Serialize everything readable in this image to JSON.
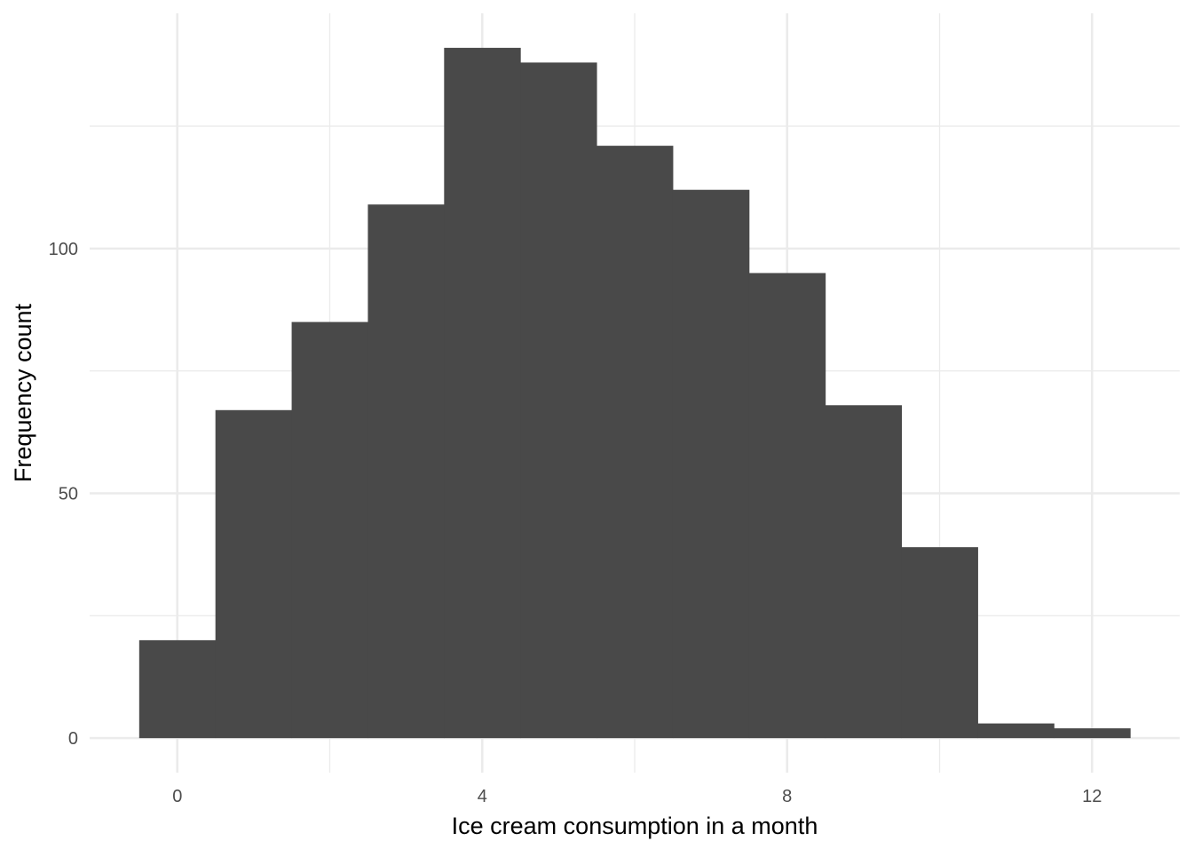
{
  "chart_data": {
    "type": "bar",
    "title": "",
    "xlabel": "Ice cream consumption in a month",
    "ylabel": "Frequency count",
    "bins": [
      {
        "x": 0,
        "count": 20
      },
      {
        "x": 1,
        "count": 67
      },
      {
        "x": 2,
        "count": 85
      },
      {
        "x": 3,
        "count": 109
      },
      {
        "x": 4,
        "count": 141
      },
      {
        "x": 5,
        "count": 138
      },
      {
        "x": 6,
        "count": 121
      },
      {
        "x": 7,
        "count": 112
      },
      {
        "x": 8,
        "count": 95
      },
      {
        "x": 9,
        "count": 68
      },
      {
        "x": 10,
        "count": 39
      },
      {
        "x": 11,
        "count": 3
      },
      {
        "x": 12,
        "count": 2
      }
    ],
    "bin_width": 1,
    "xlim": [
      -1.15,
      13.15
    ],
    "ylim": [
      -7.05,
      148.05
    ],
    "x_ticks": [
      0,
      4,
      8,
      12
    ],
    "x_tick_labels": [
      "0",
      "4",
      "8",
      "12"
    ],
    "x_minor_ticks": [
      2,
      6,
      10
    ],
    "y_ticks": [
      0,
      50,
      100
    ],
    "y_tick_labels": [
      "0",
      "50",
      "100"
    ],
    "y_minor_ticks": [
      25,
      75,
      125
    ],
    "grid": true,
    "bar_color": "#494949",
    "grid_color": "#ebebeb",
    "background": "#ffffff"
  }
}
